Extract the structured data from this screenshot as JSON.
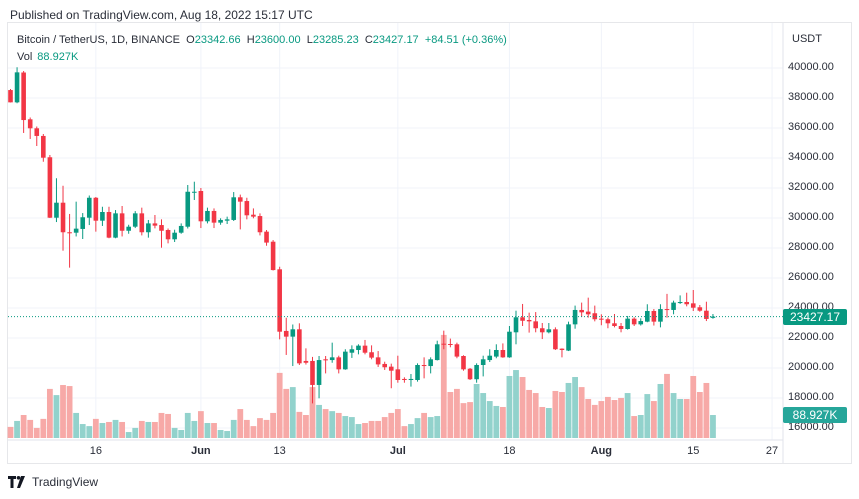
{
  "published": "Published on TradingView.com, Aug 18, 2022 15:17 UTC",
  "legend": {
    "symbol": "Bitcoin / TetherUS, 1D, BINANCE",
    "open_label": "O",
    "open": "23342.66",
    "high_label": "H",
    "high": "23600.00",
    "low_label": "L",
    "low": "23285.23",
    "close_label": "C",
    "close": "23427.17",
    "change": "+84.51 (+0.36%)",
    "vol_label": "Vol",
    "vol": "88.927K"
  },
  "currency": "USDT",
  "price_badge": "23427.17",
  "volume_badge": "88.927K",
  "logo_text": "TradingView",
  "colors": {
    "up": "#089981",
    "down": "#f23645",
    "vol_up": "#92d2cc",
    "vol_down": "#f7a9a7",
    "badge_price": "#089981",
    "badge_volume": "#26a69a"
  },
  "y_axis": [
    "40000.00",
    "38000.00",
    "36000.00",
    "34000.00",
    "32000.00",
    "30000.00",
    "28000.00",
    "26000.00",
    "24000.00",
    "22000.00",
    "20000.00",
    "18000.00",
    "16000.00"
  ],
  "x_axis": [
    {
      "label": "16",
      "date": "2022-05-16",
      "major": false
    },
    {
      "label": "Jun",
      "date": "2022-06-01",
      "major": true
    },
    {
      "label": "13",
      "date": "2022-06-13",
      "major": false
    },
    {
      "label": "Jul",
      "date": "2022-07-01",
      "major": true
    },
    {
      "label": "18",
      "date": "2022-07-18",
      "major": false
    },
    {
      "label": "Aug",
      "date": "2022-08-01",
      "major": true
    },
    {
      "label": "15",
      "date": "2022-08-15",
      "major": false
    },
    {
      "label": "27",
      "date": "2022-08-27",
      "major": false
    }
  ],
  "chart_data": {
    "type": "candlestick",
    "interval": "1D",
    "ylim": [
      15500,
      41000
    ],
    "fields": [
      "open",
      "high",
      "low",
      "close",
      "volume_k"
    ],
    "candles": [
      [
        38530,
        38600,
        37700,
        37710,
        43
      ],
      [
        37710,
        40050,
        37650,
        39710,
        66
      ],
      [
        39700,
        39800,
        35670,
        36530,
        89
      ],
      [
        36580,
        36700,
        35270,
        35980,
        70
      ],
      [
        35980,
        36100,
        34800,
        35470,
        39
      ],
      [
        35470,
        35600,
        33750,
        34020,
        74
      ],
      [
        34050,
        34200,
        30000,
        30020,
        190
      ],
      [
        30020,
        32650,
        29730,
        31020,
        166
      ],
      [
        31020,
        32150,
        27820,
        29050,
        205
      ],
      [
        29050,
        30270,
        26690,
        28980,
        201
      ],
      [
        29020,
        31090,
        28770,
        29290,
        97
      ],
      [
        29270,
        30330,
        28600,
        30050,
        54
      ],
      [
        30020,
        31500,
        29530,
        31350,
        46
      ],
      [
        31350,
        31400,
        29090,
        29820,
        74
      ],
      [
        29820,
        30750,
        29470,
        30400,
        58
      ],
      [
        30400,
        30750,
        28650,
        28690,
        62
      ],
      [
        28690,
        30530,
        28650,
        30310,
        70
      ],
      [
        30310,
        30800,
        28770,
        29150,
        62
      ],
      [
        29150,
        29550,
        28950,
        29420,
        23
      ],
      [
        29420,
        30460,
        29330,
        30310,
        39
      ],
      [
        30310,
        30690,
        28840,
        29050,
        66
      ],
      [
        29050,
        29870,
        28690,
        29640,
        62
      ],
      [
        29640,
        30200,
        29310,
        29490,
        62
      ],
      [
        29530,
        29910,
        28020,
        29150,
        97
      ],
      [
        29200,
        29300,
        28310,
        28580,
        93
      ],
      [
        28580,
        29220,
        28400,
        29020,
        39
      ],
      [
        29020,
        29640,
        28950,
        29470,
        31
      ],
      [
        29420,
        32200,
        29300,
        31750,
        97
      ],
      [
        31690,
        32420,
        31200,
        31750,
        66
      ],
      [
        31800,
        32000,
        29330,
        29780,
        104
      ],
      [
        29780,
        30690,
        29640,
        30470,
        58
      ],
      [
        30470,
        30640,
        29330,
        29690,
        58
      ],
      [
        29690,
        29980,
        29550,
        29870,
        31
      ],
      [
        29820,
        30090,
        29600,
        29910,
        27
      ],
      [
        29870,
        31730,
        29800,
        31380,
        70
      ],
      [
        31380,
        31560,
        29240,
        31090,
        112
      ],
      [
        31130,
        31350,
        29910,
        30180,
        70
      ],
      [
        30220,
        30640,
        29980,
        30090,
        46
      ],
      [
        30130,
        30310,
        28840,
        29050,
        77
      ],
      [
        29090,
        29200,
        28150,
        28360,
        70
      ],
      [
        28420,
        28530,
        26500,
        26530,
        97
      ],
      [
        26580,
        26750,
        21910,
        22420,
        252
      ],
      [
        22470,
        23350,
        20870,
        22090,
        190
      ],
      [
        22090,
        22900,
        20130,
        22580,
        197
      ],
      [
        22580,
        22980,
        20200,
        20310,
        101
      ],
      [
        20470,
        21310,
        20230,
        20350,
        89
      ],
      [
        20470,
        20740,
        17640,
        18870,
        197
      ],
      [
        18870,
        20800,
        17980,
        20530,
        128
      ],
      [
        20580,
        20800,
        19640,
        20510,
        112
      ],
      [
        20530,
        21690,
        20350,
        20710,
        104
      ],
      [
        20710,
        20820,
        19640,
        19910,
        97
      ],
      [
        19910,
        21250,
        19880,
        21090,
        85
      ],
      [
        21020,
        21510,
        20670,
        21250,
        81
      ],
      [
        21200,
        21580,
        20910,
        21490,
        54
      ],
      [
        21490,
        21870,
        20910,
        21020,
        58
      ],
      [
        21050,
        21510,
        20580,
        20690,
        66
      ],
      [
        20710,
        21130,
        20070,
        20240,
        66
      ],
      [
        20270,
        20420,
        19870,
        20050,
        81
      ],
      [
        20090,
        20290,
        18650,
        19820,
        97
      ],
      [
        19910,
        20820,
        19020,
        19200,
        112
      ],
      [
        19270,
        19380,
        19020,
        19200,
        46
      ],
      [
        19200,
        19600,
        18760,
        19270,
        54
      ],
      [
        19200,
        20310,
        19090,
        20200,
        77
      ],
      [
        20200,
        20710,
        19310,
        20130,
        97
      ],
      [
        20130,
        20710,
        19640,
        20580,
        81
      ],
      [
        20530,
        21820,
        20500,
        21580,
        85
      ],
      [
        21620,
        22490,
        21250,
        21560,
        399
      ],
      [
        21600,
        21960,
        21380,
        21570,
        178
      ],
      [
        21580,
        21690,
        20650,
        20760,
        190
      ],
      [
        20800,
        20850,
        19820,
        19910,
        135
      ],
      [
        19950,
        20000,
        19200,
        19250,
        139
      ],
      [
        19250,
        20310,
        19020,
        20200,
        209
      ],
      [
        20200,
        20820,
        19440,
        20580,
        174
      ],
      [
        20530,
        21250,
        20400,
        20820,
        143
      ],
      [
        20760,
        21580,
        20650,
        21200,
        124
      ],
      [
        21200,
        21640,
        20680,
        20710,
        120
      ],
      [
        20710,
        22800,
        20680,
        22420,
        240
      ],
      [
        22380,
        23820,
        21580,
        23380,
        263
      ],
      [
        23380,
        24270,
        22800,
        23150,
        236
      ],
      [
        23200,
        23690,
        22360,
        23110,
        186
      ],
      [
        23110,
        23730,
        22380,
        22650,
        174
      ],
      [
        22650,
        23000,
        21930,
        22380,
        120
      ],
      [
        22380,
        23000,
        22310,
        22580,
        116
      ],
      [
        22580,
        22710,
        21200,
        21250,
        182
      ],
      [
        21290,
        21310,
        20710,
        21200,
        178
      ],
      [
        21160,
        23090,
        21130,
        22910,
        213
      ],
      [
        22910,
        24160,
        22620,
        23870,
        236
      ],
      [
        23870,
        24360,
        23400,
        23710,
        197
      ],
      [
        23760,
        24690,
        23360,
        23580,
        151
      ],
      [
        23650,
        24160,
        23110,
        23250,
        128
      ],
      [
        23290,
        23580,
        22850,
        23220,
        143
      ],
      [
        23250,
        23360,
        22650,
        22980,
        159
      ],
      [
        22980,
        23600,
        22710,
        22800,
        147
      ],
      [
        22800,
        23000,
        22380,
        22600,
        155
      ],
      [
        22600,
        23470,
        22560,
        23290,
        174
      ],
      [
        23290,
        23380,
        22800,
        22910,
        85
      ],
      [
        22910,
        23310,
        22830,
        23130,
        89
      ],
      [
        23090,
        24250,
        23050,
        23800,
        170
      ],
      [
        23800,
        23930,
        22830,
        23090,
        143
      ],
      [
        23090,
        24250,
        22710,
        23930,
        209
      ],
      [
        23930,
        24940,
        23360,
        23870,
        248
      ],
      [
        23870,
        24490,
        23580,
        24360,
        174
      ],
      [
        24330,
        24840,
        24270,
        24400,
        151
      ],
      [
        24400,
        25020,
        24110,
        24250,
        151
      ],
      [
        24310,
        25200,
        23800,
        24020,
        240
      ],
      [
        24050,
        24200,
        23750,
        23820,
        178
      ],
      [
        23820,
        24420,
        23130,
        23270,
        213
      ],
      [
        23342.66,
        23600,
        23285.23,
        23427.17,
        88.927
      ]
    ]
  }
}
